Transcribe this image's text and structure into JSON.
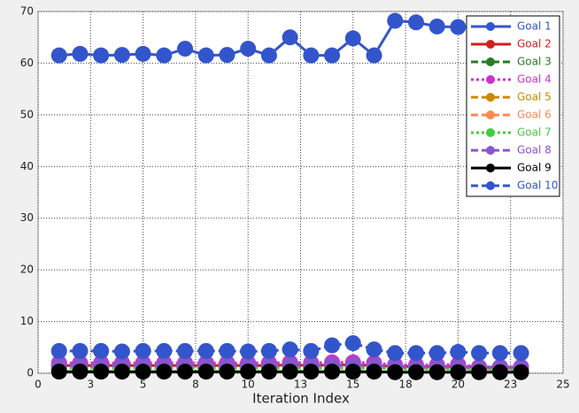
{
  "chart_data": {
    "type": "line",
    "x_label": "Iteration Index",
    "x": [
      1,
      2,
      3,
      4,
      5,
      6,
      7,
      8,
      9,
      10,
      11,
      12,
      13,
      14,
      15,
      16,
      17,
      18,
      19,
      20,
      21,
      22,
      23
    ],
    "xlim": [
      0,
      25
    ],
    "xticks": [
      0,
      {
        "value": 2.5,
        "label": "3"
      },
      5,
      {
        "value": 7.5,
        "label": "8"
      },
      10,
      {
        "value": 12.5,
        "label": "13"
      },
      15,
      {
        "value": 17.5,
        "label": "18"
      },
      20,
      {
        "value": 22.5,
        "label": "23"
      },
      25
    ],
    "ylim": [
      0,
      70
    ],
    "yticks": [
      0,
      10,
      20,
      30,
      40,
      50,
      60,
      70
    ],
    "grid": true,
    "legend": "top-right",
    "series": [
      {
        "name": "Goal 1",
        "color": "#3355cc",
        "dash": "solid",
        "values": [
          61.5,
          61.8,
          61.5,
          61.6,
          61.8,
          61.5,
          62.8,
          61.5,
          61.6,
          62.8,
          61.5,
          65,
          61.5,
          61.5,
          64.8,
          61.5,
          68.2,
          67.9,
          67.1,
          67,
          null,
          null,
          null
        ]
      },
      {
        "name": "Goal 2",
        "color": "#cc2222",
        "dash": "solid",
        "values": [
          1.5,
          1.5,
          1.5,
          1.5,
          1.5,
          1.5,
          1.5,
          1.5,
          1.5,
          1.5,
          1.5,
          1.6,
          1.5,
          1.6,
          1.6,
          1.5,
          1.3,
          1.3,
          1.3,
          1.3,
          1.2,
          1.2,
          1.2
        ]
      },
      {
        "name": "Goal 3",
        "color": "#2a7a2a",
        "dash": "dashed",
        "values": [
          1.2,
          1.2,
          1.2,
          1.2,
          1.2,
          1.2,
          1.2,
          1.2,
          1.2,
          1.2,
          1.2,
          1.2,
          1.2,
          1.2,
          1.2,
          1.2,
          1,
          1,
          1,
          1,
          0.9,
          0.9,
          0.9
        ]
      },
      {
        "name": "Goal 4",
        "color": "#cc33cc",
        "dash": "dotted",
        "values": [
          2,
          2,
          2,
          2,
          2,
          2,
          2,
          2,
          2,
          2,
          2,
          2.1,
          2,
          2.1,
          2.1,
          2,
          1.6,
          1.6,
          1.6,
          1.7,
          1.2,
          1.2,
          1.2
        ]
      },
      {
        "name": "Goal 5",
        "color": "#cc8800",
        "dash": "dashed",
        "values": [
          1,
          1,
          1,
          1,
          1,
          1,
          1,
          1,
          1,
          1,
          1,
          1,
          1,
          1,
          1,
          1,
          0.9,
          0.9,
          0.9,
          0.9,
          0.8,
          0.8,
          0.8
        ]
      },
      {
        "name": "Goal 6",
        "color": "#ff8855",
        "dash": "dashed",
        "values": [
          1,
          1,
          1,
          1,
          1,
          1,
          1,
          1,
          1,
          1,
          1,
          1,
          1,
          1,
          1,
          1,
          0.9,
          0.9,
          0.9,
          0.9,
          0.8,
          0.8,
          0.8
        ]
      },
      {
        "name": "Goal 7",
        "color": "#44cc44",
        "dash": "dotted",
        "values": [
          1,
          1,
          1,
          1,
          1,
          1,
          1,
          1,
          1,
          1,
          1,
          1,
          1,
          1,
          1,
          1,
          0.8,
          0.8,
          0.8,
          0.8,
          0.7,
          0.7,
          0.7
        ]
      },
      {
        "name": "Goal 8",
        "color": "#8855cc",
        "dash": "dashed",
        "values": [
          1.5,
          1.5,
          1.5,
          1.5,
          1.5,
          1.5,
          1.5,
          1.5,
          1.5,
          1.5,
          1.5,
          1.6,
          1.5,
          1.6,
          1.6,
          1.5,
          1.2,
          1.2,
          1.2,
          1.2,
          1.1,
          1.1,
          1.1
        ]
      },
      {
        "name": "Goal 9",
        "color": "#000000",
        "dash": "solid",
        "values": [
          0.3,
          0.3,
          0.3,
          0.3,
          0.3,
          0.3,
          0.3,
          0.3,
          0.3,
          0.3,
          0.3,
          0.3,
          0.3,
          0.3,
          0.3,
          0.3,
          0.2,
          0.2,
          0.2,
          0.2,
          0.2,
          0.2,
          0.2
        ]
      },
      {
        "name": "Goal 10",
        "color": "#3355cc",
        "dash": "dashed",
        "values": [
          4.3,
          4.3,
          4.3,
          4.2,
          4.3,
          4.3,
          4.3,
          4.3,
          4.3,
          4.2,
          4.3,
          4.6,
          4.3,
          5.4,
          5.8,
          4.6,
          3.9,
          3.9,
          3.9,
          4.1,
          3.9,
          3.9,
          3.9
        ]
      }
    ]
  }
}
